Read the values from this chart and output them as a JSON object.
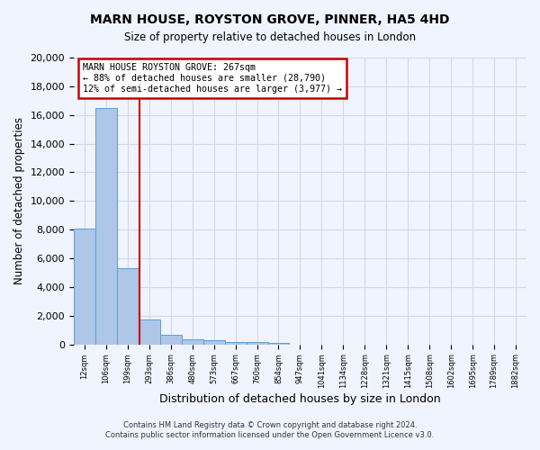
{
  "title": "MARN HOUSE, ROYSTON GROVE, PINNER, HA5 4HD",
  "subtitle": "Size of property relative to detached houses in London",
  "xlabel": "Distribution of detached houses by size in London",
  "ylabel": "Number of detached properties",
  "bin_labels": [
    "12sqm",
    "106sqm",
    "199sqm",
    "293sqm",
    "386sqm",
    "480sqm",
    "573sqm",
    "667sqm",
    "760sqm",
    "854sqm",
    "947sqm",
    "1041sqm",
    "1134sqm",
    "1228sqm",
    "1321sqm",
    "1415sqm",
    "1508sqm",
    "1602sqm",
    "1695sqm",
    "1789sqm",
    "1882sqm"
  ],
  "bar_heights": [
    8100,
    16500,
    5300,
    1750,
    650,
    350,
    270,
    190,
    180,
    100,
    0,
    0,
    0,
    0,
    0,
    0,
    0,
    0,
    0,
    0,
    0
  ],
  "bar_color": "#aec6e8",
  "bar_edge_color": "#5a9fd4",
  "grid_color": "#d0d8e8",
  "red_line_x": 2.57,
  "annotation_text": "MARN HOUSE ROYSTON GROVE: 267sqm\n← 88% of detached houses are smaller (28,790)\n12% of semi-detached houses are larger (3,977) →",
  "annotation_box_color": "#ffffff",
  "annotation_edge_color": "#cc0000",
  "ylim": [
    0,
    20000
  ],
  "yticks": [
    0,
    2000,
    4000,
    6000,
    8000,
    10000,
    12000,
    14000,
    16000,
    18000,
    20000
  ],
  "footer_line1": "Contains HM Land Registry data © Crown copyright and database right 2024.",
  "footer_line2": "Contains public sector information licensed under the Open Government Licence v3.0.",
  "background_color": "#f0f4ff",
  "plot_bg_color": "#f0f4ff"
}
